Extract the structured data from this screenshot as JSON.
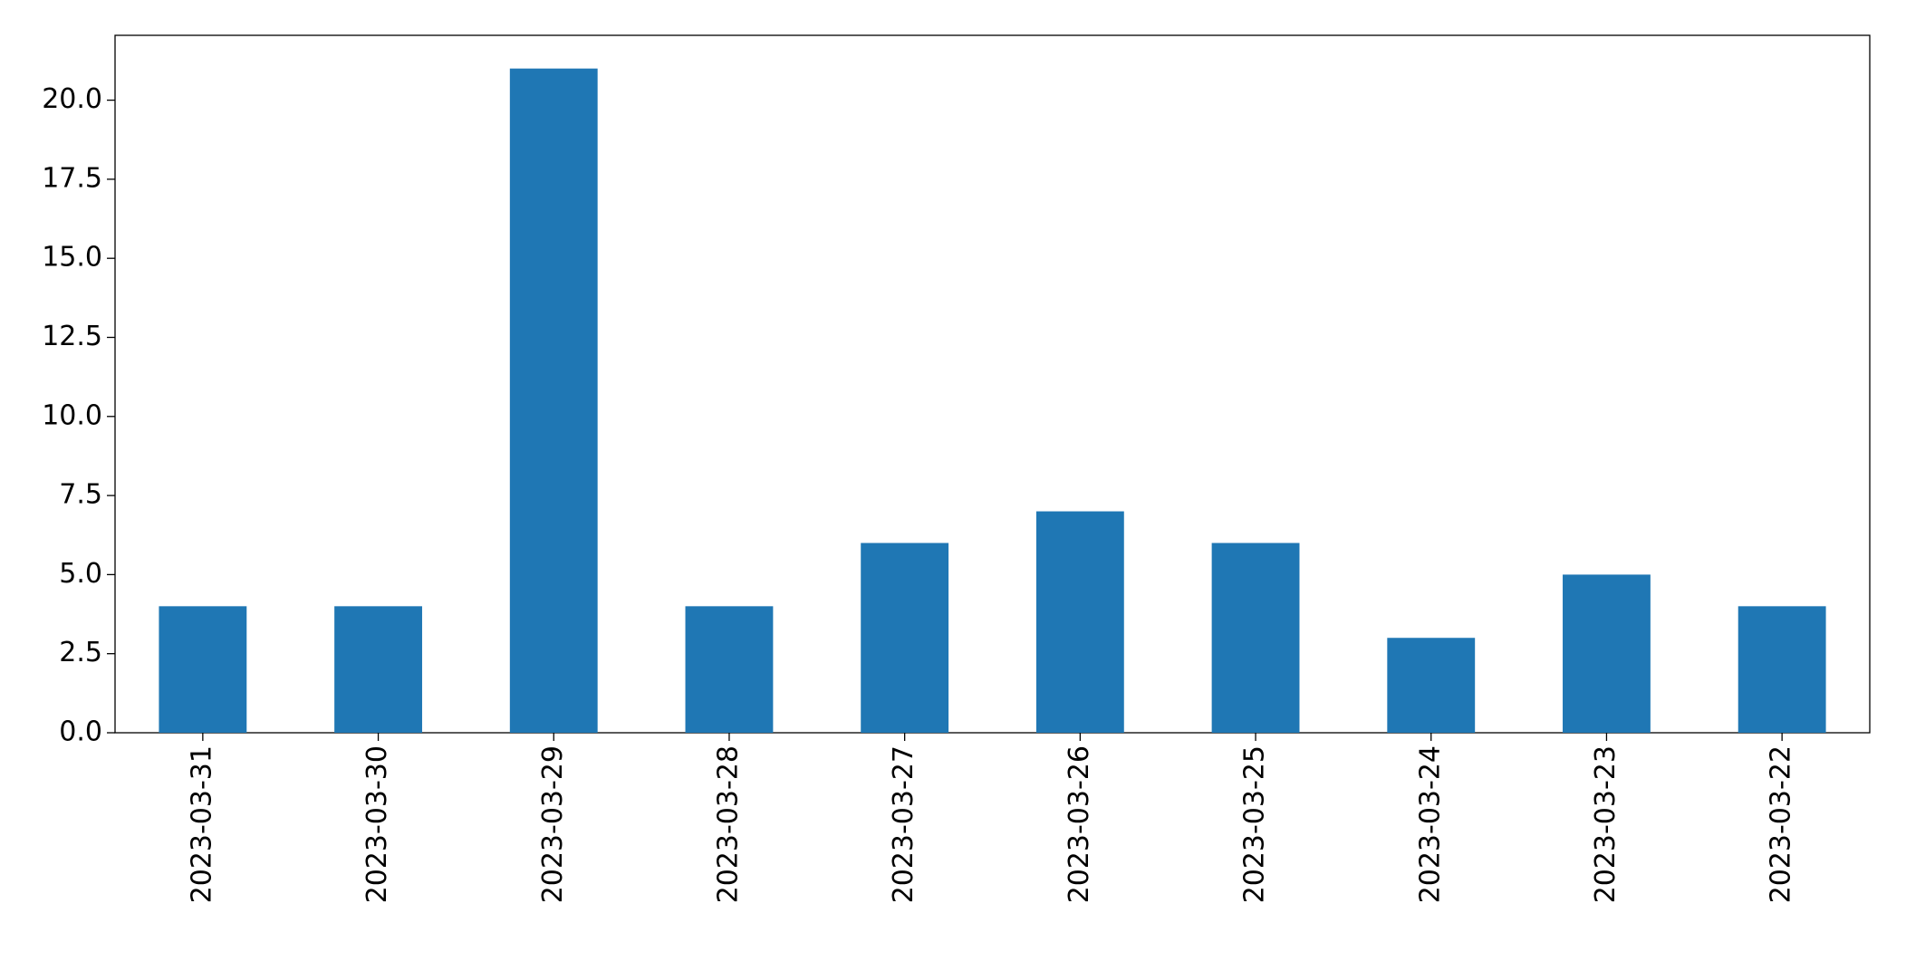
{
  "chart_data": {
    "type": "bar",
    "categories": [
      "2023-03-31",
      "2023-03-30",
      "2023-03-29",
      "2023-03-28",
      "2023-03-27",
      "2023-03-26",
      "2023-03-25",
      "2023-03-24",
      "2023-03-23",
      "2023-03-22"
    ],
    "values": [
      4,
      4,
      21,
      4,
      6,
      7,
      6,
      3,
      5,
      4
    ],
    "color": "#1f77b4",
    "ylim": [
      0,
      22.05
    ],
    "yticks": [
      {
        "value": 0,
        "label": "0.0"
      },
      2.5,
      {
        "value": 5,
        "label": "5.0"
      },
      7.5,
      {
        "value": 10,
        "label": "10.0"
      },
      12.5,
      {
        "value": 15,
        "label": "15.0"
      },
      17.5,
      {
        "value": 20,
        "label": "20.0"
      }
    ],
    "grid": false
  }
}
